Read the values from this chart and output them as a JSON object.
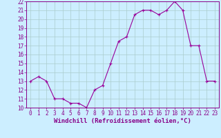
{
  "x": [
    0,
    1,
    2,
    3,
    4,
    5,
    6,
    7,
    8,
    9,
    10,
    11,
    12,
    13,
    14,
    15,
    16,
    17,
    18,
    19,
    20,
    21,
    22,
    23
  ],
  "y": [
    13,
    13.5,
    13,
    11,
    11,
    10.5,
    10.5,
    10,
    12,
    12.5,
    15,
    17.5,
    18,
    20.5,
    21,
    21,
    20.5,
    21,
    22,
    21,
    17,
    17,
    13,
    13
  ],
  "line_color": "#990099",
  "marker": "+",
  "marker_size": 3,
  "marker_lw": 0.8,
  "line_width": 0.8,
  "bg_color": "#cceeff",
  "grid_color": "#aacccc",
  "xlabel": "Windchill (Refroidissement éolien,°C)",
  "xlabel_fontsize": 6.5,
  "ylim": [
    10,
    22
  ],
  "xlim": [
    -0.5,
    23.5
  ],
  "yticks": [
    10,
    11,
    12,
    13,
    14,
    15,
    16,
    17,
    18,
    19,
    20,
    21,
    22
  ],
  "xticks": [
    0,
    1,
    2,
    3,
    4,
    5,
    6,
    7,
    8,
    9,
    10,
    11,
    12,
    13,
    14,
    15,
    16,
    17,
    18,
    19,
    20,
    21,
    22,
    23
  ],
  "tick_fontsize": 5.5,
  "tick_color": "#880088",
  "spine_color": "#880088",
  "label_color": "#880088"
}
